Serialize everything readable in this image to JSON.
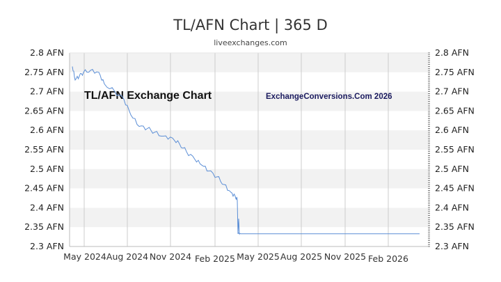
{
  "header": {
    "title": "TL/AFN Chart | 365 D",
    "subtitle": "liveexchanges.com"
  },
  "watermarks": {
    "left": "TL/AFN Exchange Chart",
    "right": "ExchangeConversions.Com 2026"
  },
  "colors": {
    "line": "#5b8ed6",
    "band": "#f2f2f2",
    "grid": "#cccccc",
    "axis": "#bbbbbb"
  },
  "chart_data": {
    "type": "line",
    "title": "TL/AFN Chart | 365 D",
    "subtitle": "liveexchanges.com",
    "xlabel": "",
    "ylabel": "AFN",
    "ylim": [
      2.3,
      2.8
    ],
    "y_ticks": [
      "2.8 AFN",
      "2.75 AFN",
      "2.7 AFN",
      "2.65 AFN",
      "2.6 AFN",
      "2.55 AFN",
      "2.5 AFN",
      "2.45 AFN",
      "2.4 AFN",
      "2.35 AFN",
      "2.3 AFN"
    ],
    "x_ticks": [
      "May 2024",
      "Aug 2024",
      "Nov 2024",
      "Feb 2025",
      "May 2025",
      "Aug 2025",
      "Nov 2025",
      "Feb 2026"
    ],
    "grid": true,
    "legend": "none",
    "series": [
      {
        "name": "TL/AFN",
        "x": [
          "2024-04",
          "2024-05",
          "2024-05",
          "2024-06",
          "2024-06",
          "2024-07",
          "2024-07",
          "2024-08",
          "2024-08",
          "2024-09",
          "2024-09",
          "2024-10",
          "2024-10",
          "2024-11",
          "2024-11",
          "2024-12",
          "2024-12",
          "2025-01",
          "2025-01",
          "2025-02",
          "2025-02",
          "2025-03",
          "2025-03",
          "2025-04",
          "2025-04",
          "2025-04",
          "2025-05",
          "2025-06",
          "2025-08",
          "2025-11",
          "2026-02",
          "2026-03"
        ],
        "values": [
          2.765,
          2.73,
          2.74,
          2.75,
          2.755,
          2.75,
          2.72,
          2.7,
          2.68,
          2.64,
          2.61,
          2.605,
          2.595,
          2.585,
          2.58,
          2.565,
          2.545,
          2.525,
          2.51,
          2.495,
          2.48,
          2.46,
          2.44,
          2.43,
          2.42,
          2.335,
          2.333,
          2.333,
          2.333,
          2.333,
          2.333,
          2.333
        ]
      }
    ]
  }
}
